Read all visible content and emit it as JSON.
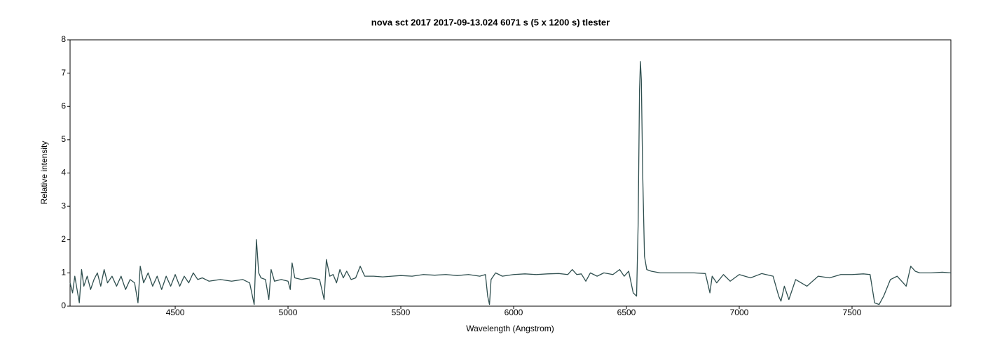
{
  "chart_data": {
    "type": "line",
    "title": "nova sct 2017   2017-09-13.024   6071 s (5 x 1200 s)   tlester",
    "x_label": "Wavelength (Angstrom)",
    "y_label": "Relative intensity",
    "color": "#2f4f4f",
    "xlim": [
      4034,
      7938
    ],
    "ylim": [
      0,
      8
    ],
    "xticks": [
      4500,
      5000,
      5500,
      6000,
      6500,
      7000,
      7500
    ],
    "yticks": [
      0,
      1,
      2,
      3,
      4,
      5,
      6,
      7,
      8
    ],
    "grid": false,
    "x": [
      4034,
      4045,
      4055,
      4065,
      4075,
      4085,
      4095,
      4110,
      4125,
      4140,
      4155,
      4170,
      4185,
      4200,
      4220,
      4240,
      4260,
      4280,
      4300,
      4320,
      4335,
      4345,
      4360,
      4380,
      4400,
      4420,
      4440,
      4460,
      4480,
      4500,
      4520,
      4540,
      4560,
      4580,
      4600,
      4620,
      4650,
      4700,
      4750,
      4800,
      4830,
      4850,
      4860,
      4870,
      4880,
      4900,
      4915,
      4925,
      4940,
      4970,
      5000,
      5010,
      5018,
      5030,
      5060,
      5100,
      5140,
      5160,
      5170,
      5185,
      5200,
      5215,
      5230,
      5245,
      5260,
      5280,
      5300,
      5320,
      5340,
      5380,
      5420,
      5460,
      5500,
      5550,
      5600,
      5650,
      5700,
      5750,
      5800,
      5850,
      5875,
      5885,
      5893,
      5900,
      5920,
      5950,
      6000,
      6050,
      6100,
      6150,
      6200,
      6240,
      6260,
      6280,
      6300,
      6320,
      6340,
      6370,
      6400,
      6440,
      6470,
      6490,
      6510,
      6530,
      6545,
      6552,
      6558,
      6562,
      6566,
      6572,
      6580,
      6590,
      6610,
      6650,
      6700,
      6750,
      6800,
      6850,
      6870,
      6880,
      6900,
      6930,
      6960,
      7000,
      7050,
      7100,
      7150,
      7175,
      7185,
      7200,
      7220,
      7250,
      7300,
      7350,
      7400,
      7450,
      7500,
      7550,
      7580,
      7600,
      7620,
      7640,
      7670,
      7700,
      7740,
      7760,
      7780,
      7800,
      7850,
      7900,
      7938
    ],
    "values": [
      0.7,
      0.4,
      0.9,
      0.5,
      0.1,
      1.1,
      0.6,
      0.9,
      0.5,
      0.8,
      1.0,
      0.6,
      1.1,
      0.7,
      0.9,
      0.6,
      0.9,
      0.5,
      0.8,
      0.7,
      0.1,
      1.2,
      0.7,
      1.0,
      0.6,
      0.9,
      0.5,
      0.9,
      0.6,
      0.95,
      0.6,
      0.9,
      0.7,
      1.0,
      0.8,
      0.85,
      0.75,
      0.8,
      0.75,
      0.8,
      0.7,
      0.05,
      2.0,
      1.0,
      0.85,
      0.8,
      0.2,
      1.1,
      0.75,
      0.8,
      0.75,
      0.5,
      1.3,
      0.85,
      0.8,
      0.85,
      0.8,
      0.2,
      1.4,
      0.9,
      0.95,
      0.7,
      1.1,
      0.85,
      1.05,
      0.8,
      0.85,
      1.2,
      0.9,
      0.9,
      0.88,
      0.9,
      0.92,
      0.9,
      0.95,
      0.93,
      0.95,
      0.92,
      0.95,
      0.9,
      0.95,
      0.3,
      0.05,
      0.8,
      1.0,
      0.9,
      0.95,
      0.97,
      0.95,
      0.97,
      0.98,
      0.95,
      1.1,
      0.95,
      0.97,
      0.75,
      1.0,
      0.9,
      1.0,
      0.95,
      1.1,
      0.9,
      1.05,
      0.4,
      0.3,
      2.5,
      6.5,
      7.35,
      6.8,
      4.0,
      1.5,
      1.1,
      1.05,
      1.0,
      1.0,
      1.0,
      1.0,
      0.98,
      0.4,
      0.9,
      0.7,
      0.95,
      0.75,
      0.95,
      0.85,
      0.98,
      0.9,
      0.3,
      0.15,
      0.6,
      0.2,
      0.8,
      0.6,
      0.9,
      0.85,
      0.95,
      0.95,
      0.97,
      0.95,
      0.1,
      0.05,
      0.3,
      0.8,
      0.9,
      0.6,
      1.2,
      1.05,
      1.0,
      1.0,
      1.02,
      1.0
    ]
  }
}
